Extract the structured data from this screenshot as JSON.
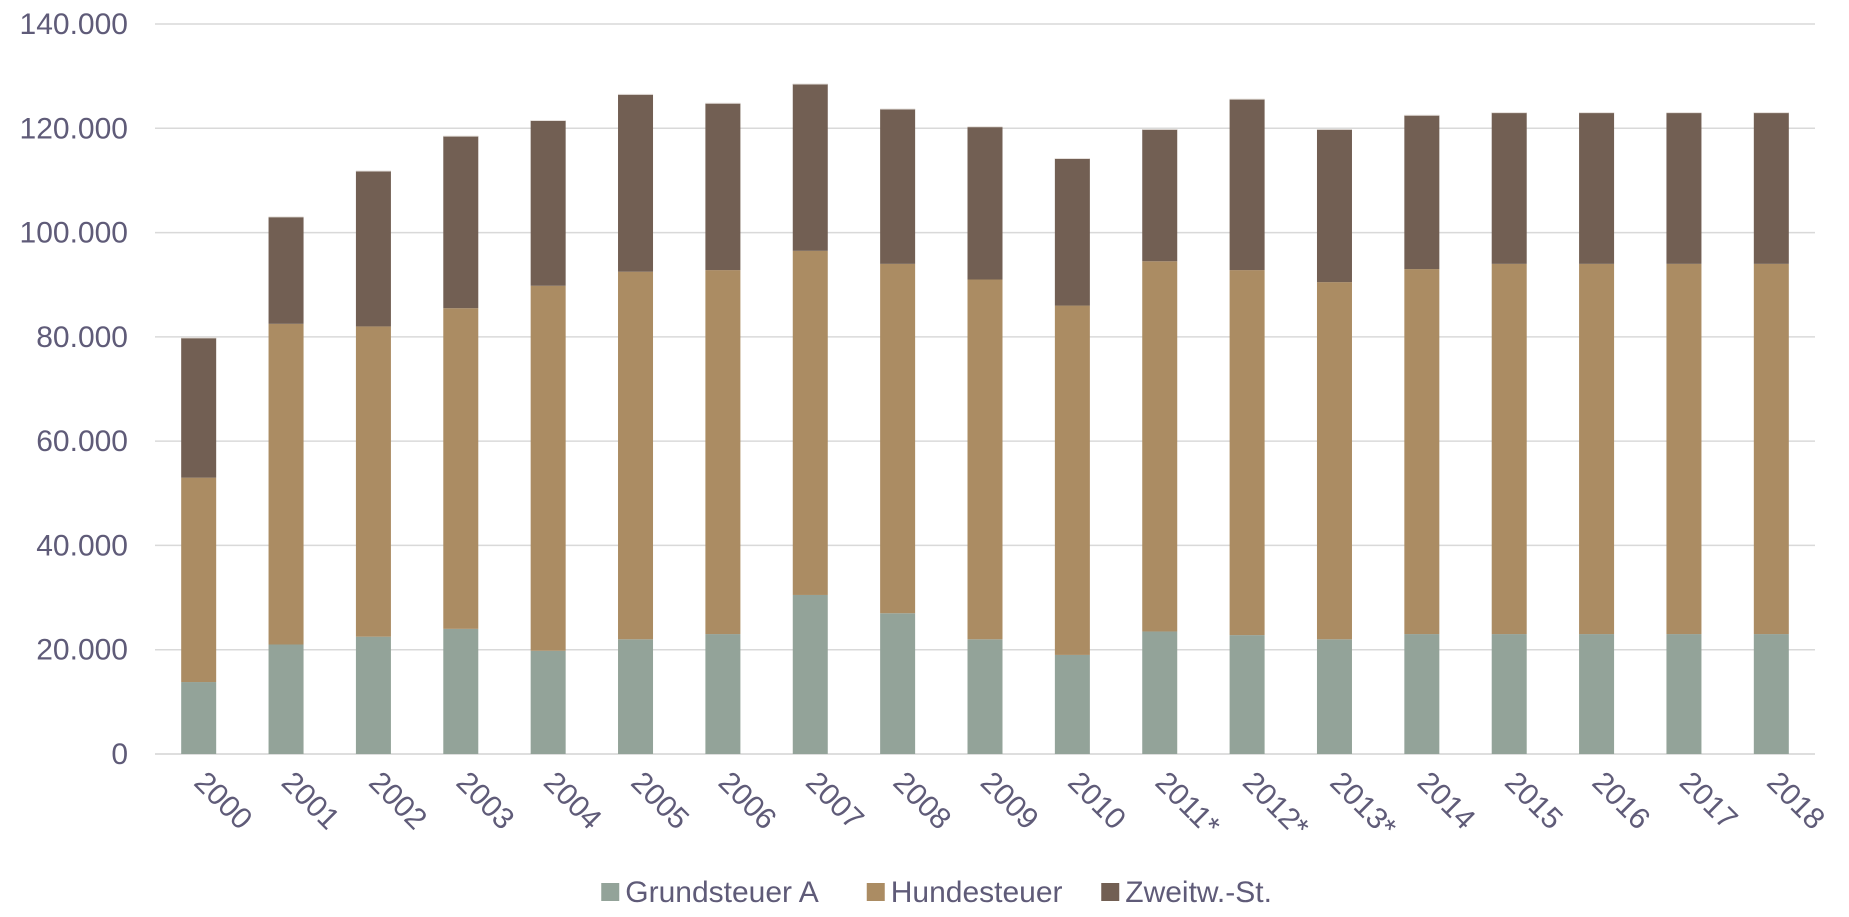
{
  "chart_data": {
    "type": "bar",
    "stacked": true,
    "title": "",
    "xlabel": "",
    "ylabel": "",
    "ylim": [
      0,
      140000
    ],
    "yticks": [
      0,
      20000,
      40000,
      60000,
      80000,
      100000,
      120000,
      140000
    ],
    "ytick_labels": [
      "0",
      "20.000",
      "40.000",
      "60.000",
      "80.000",
      "100.000",
      "120.000",
      "140.000"
    ],
    "grid": true,
    "legend_position": "bottom",
    "categories": [
      "2000",
      "2001",
      "2002",
      "2003",
      "2004",
      "2005",
      "2006",
      "2007",
      "2008",
      "2009",
      "2010",
      "2011*",
      "2012*",
      "2013*",
      "2014",
      "2015",
      "2016",
      "2017",
      "2018"
    ],
    "series": [
      {
        "name": "Grundsteuer A",
        "color": "#93a399",
        "values": [
          13800,
          21000,
          22500,
          24000,
          19800,
          22000,
          23000,
          30500,
          27000,
          22000,
          19000,
          23500,
          22800,
          22000,
          23000,
          23000,
          23000,
          23000,
          23000
        ]
      },
      {
        "name": "Hundesteuer",
        "color": "#ab8c63",
        "values": [
          39200,
          61500,
          59500,
          61500,
          70000,
          70500,
          69800,
          66000,
          67000,
          69000,
          67000,
          71000,
          70000,
          68500,
          70000,
          71000,
          71000,
          71000,
          71000
        ]
      },
      {
        "name": "Zweitw.-St.",
        "color": "#725f53",
        "values": [
          26800,
          20500,
          29800,
          33000,
          31700,
          34000,
          32000,
          32000,
          29700,
          29300,
          28200,
          25300,
          32800,
          29300,
          29500,
          29000,
          29000,
          29000,
          29000
        ]
      }
    ]
  }
}
